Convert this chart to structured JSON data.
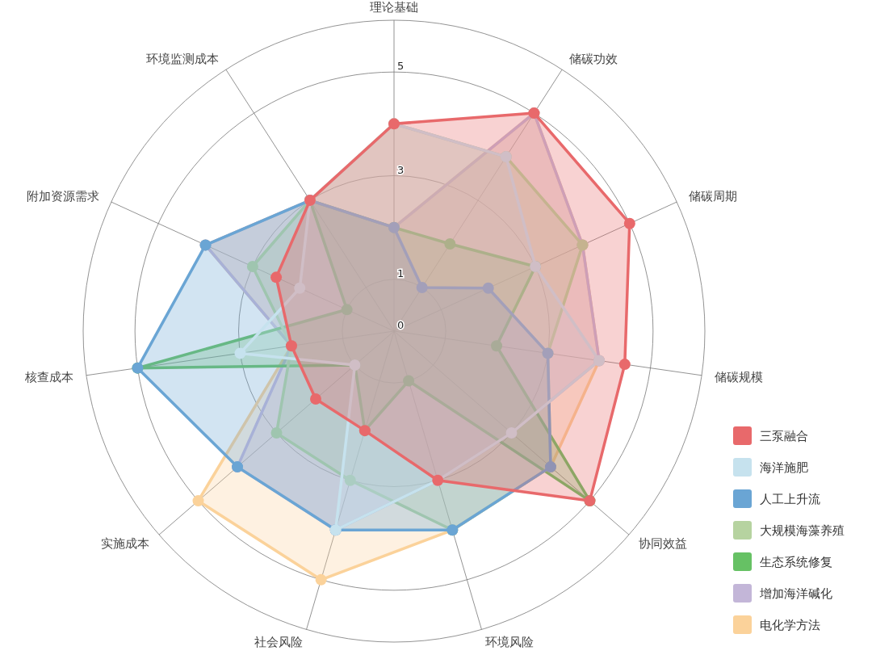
{
  "chart_data": {
    "type": "radar",
    "categories": [
      "理论基础",
      "储碳功效",
      "储碳周期",
      "储碳规模",
      "协同效益",
      "环境风险",
      "社会风险",
      "实施成本",
      "核查成本",
      "附加资源需求",
      "环境监测成本"
    ],
    "ylim": [
      0,
      6
    ],
    "yticks": [
      0,
      1,
      3,
      5
    ],
    "grid": true,
    "legend": "bottom right",
    "marker": "circle",
    "series": [
      {
        "name": "三泵融合",
        "color": "#e8696b",
        "values": [
          4,
          5,
          5,
          4.5,
          5,
          3,
          2,
          2,
          2,
          2.5,
          3
        ]
      },
      {
        "name": "海洋施肥",
        "color": "#c6e2ee",
        "values": [
          4,
          4,
          3,
          4,
          3,
          3,
          4,
          1,
          3,
          2,
          3
        ]
      },
      {
        "name": "人工上升流",
        "color": "#6aa5d4",
        "values": [
          2,
          1,
          2,
          3,
          4,
          4,
          4,
          4,
          5,
          4,
          3
        ]
      },
      {
        "name": "大规模海藻养殖",
        "color": "#b6d3a0",
        "values": [
          4,
          4,
          4,
          3,
          4,
          4,
          3,
          3,
          2,
          3,
          3
        ]
      },
      {
        "name": "生态系统修复",
        "color": "#66c164",
        "values": [
          2,
          2,
          3,
          2,
          5,
          1,
          2,
          1,
          5,
          1,
          3
        ]
      },
      {
        "name": "增加海洋碱化",
        "color": "#c3b6d8",
        "values": [
          2,
          5,
          4,
          4,
          3,
          3,
          4,
          4,
          2,
          4,
          3
        ]
      },
      {
        "name": "电化学方法",
        "color": "#fbd29a",
        "values": [
          2,
          5,
          4,
          4,
          4,
          4,
          5,
          5,
          2,
          4,
          3
        ]
      }
    ]
  }
}
